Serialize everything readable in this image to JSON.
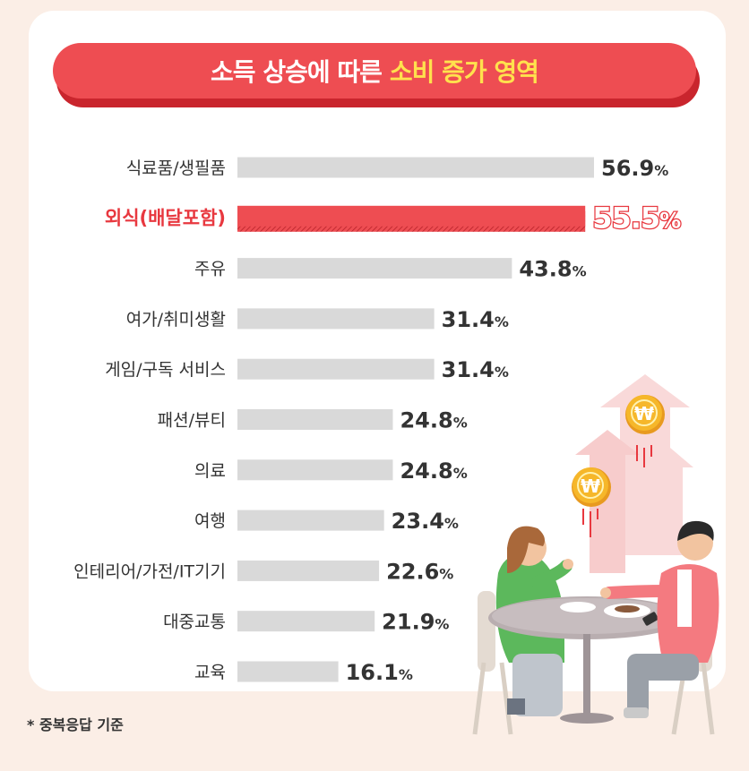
{
  "title": {
    "prefix": "소득 상승에 따른",
    "highlight": "소비 증가 영역"
  },
  "footnote": "* 중복응답 기준",
  "colors": {
    "background": "#fbeee6",
    "bar": "#d9d9d9",
    "highlight_bar": "#ee4d52",
    "highlight_text": "#e8383f",
    "title_bg": "#ee4d52",
    "title_accent": "#ffe14d"
  },
  "illustration": [
    "won-coin-icon",
    "rising-arrow-icon",
    "couple-dining-illustration"
  ],
  "chart_data": {
    "type": "bar",
    "orientation": "horizontal",
    "unit": "%",
    "categories": [
      "식료품/생필품",
      "외식(배달포함)",
      "주유",
      "여가/취미생활",
      "게임/구독 서비스",
      "패션/뷰티",
      "의료",
      "여행",
      "인테리어/가전/IT기기",
      "대중교통",
      "교육"
    ],
    "values": [
      56.9,
      55.5,
      43.8,
      31.4,
      31.4,
      24.8,
      24.8,
      23.4,
      22.6,
      21.9,
      16.1
    ],
    "highlight_index": 1,
    "title": "소득 상승에 따른 소비 증가 영역",
    "grid": false,
    "legend": "none"
  }
}
